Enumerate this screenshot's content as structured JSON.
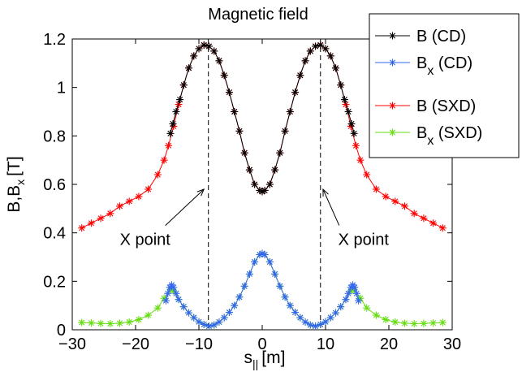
{
  "chart_data": {
    "type": "line",
    "title": "Magnetic field",
    "xlabel": "s",
    "xlabel_sub": "||",
    "xlabel_unit": "[m]",
    "ylabel": "B,B",
    "ylabel_sub": "x",
    "ylabel_unit": "[T]",
    "xlim": [
      -30,
      30
    ],
    "ylim": [
      0,
      1.2
    ],
    "xticks": [
      -30,
      -20,
      -10,
      0,
      10,
      20,
      30
    ],
    "xtick_labels": [
      "−30",
      "−20",
      "−10",
      "0",
      "10",
      "20",
      "30"
    ],
    "yticks": [
      0,
      0.2,
      0.4,
      0.6,
      0.8,
      1.0,
      1.2
    ],
    "ytick_labels": [
      "0",
      "0.2",
      "0.4",
      "0.6",
      "0.8",
      "1",
      "1.2"
    ],
    "grid": false,
    "legend_position": "top-right",
    "series": [
      {
        "name": "B  (SXD)",
        "label_main": "B",
        "label_sub": "",
        "label_rest": "  (SXD)",
        "color": "#ff0000",
        "x": [
          -28.5,
          -27,
          -25.5,
          -24,
          -22.5,
          -21,
          -19.5,
          -18,
          -16.5,
          -15.5,
          -14.8,
          -14,
          -13.2,
          -12.4,
          -11.6,
          -10.8,
          -10,
          -9.2,
          -8.4,
          -7.6,
          -6.8,
          -6,
          -5.2,
          -4.4,
          -3.6,
          -2.8,
          -2,
          -1.2,
          -0.4,
          0,
          0.4,
          1.2,
          2,
          2.8,
          3.6,
          4.4,
          5.2,
          6,
          6.8,
          7.6,
          8.4,
          9.2,
          10,
          10.8,
          11.6,
          12.4,
          13.2,
          14,
          14.8,
          15.5,
          16.5,
          18,
          19.5,
          21,
          22.5,
          24,
          25.5,
          27,
          28.5
        ],
        "y": [
          0.42,
          0.44,
          0.46,
          0.48,
          0.51,
          0.53,
          0.55,
          0.58,
          0.64,
          0.7,
          0.76,
          0.84,
          0.93,
          1.01,
          1.08,
          1.13,
          1.16,
          1.175,
          1.17,
          1.15,
          1.11,
          1.05,
          0.98,
          0.9,
          0.82,
          0.73,
          0.66,
          0.6,
          0.575,
          0.57,
          0.575,
          0.6,
          0.66,
          0.73,
          0.82,
          0.9,
          0.98,
          1.05,
          1.11,
          1.15,
          1.17,
          1.175,
          1.16,
          1.13,
          1.08,
          1.01,
          0.93,
          0.84,
          0.76,
          0.7,
          0.64,
          0.58,
          0.55,
          0.53,
          0.51,
          0.48,
          0.46,
          0.44,
          0.42
        ]
      },
      {
        "name": "B  (CD)",
        "label_main": "B",
        "label_sub": "",
        "label_rest": "  (CD)",
        "color": "#000000",
        "x": [
          -14.5,
          -14.1,
          -13.6,
          -13.0,
          -12.4,
          -11.6,
          -10.8,
          -10,
          -9.2,
          -8.4,
          -7.6,
          -6.8,
          -6,
          -5.2,
          -4.4,
          -3.6,
          -2.8,
          -2,
          -1.2,
          -0.4,
          0,
          0.4,
          1.2,
          2,
          2.8,
          3.6,
          4.4,
          5.2,
          6,
          6.8,
          7.6,
          8.4,
          9.2,
          10,
          10.8,
          11.6,
          12.4,
          13.0,
          13.6,
          14.1,
          14.5
        ],
        "y": [
          0.81,
          0.85,
          0.9,
          0.95,
          1.01,
          1.08,
          1.13,
          1.16,
          1.175,
          1.17,
          1.15,
          1.11,
          1.05,
          0.98,
          0.9,
          0.82,
          0.73,
          0.66,
          0.6,
          0.575,
          0.57,
          0.575,
          0.6,
          0.66,
          0.73,
          0.82,
          0.9,
          0.98,
          1.05,
          1.11,
          1.15,
          1.17,
          1.175,
          1.16,
          1.13,
          1.08,
          1.01,
          0.95,
          0.9,
          0.85,
          0.81
        ]
      },
      {
        "name": "Bx (SXD)",
        "label_main": "B",
        "label_sub": "x",
        "label_rest": " (SXD)",
        "color": "#66dd11",
        "x": [
          -28.5,
          -27,
          -25.5,
          -24,
          -22.5,
          -21,
          -19.5,
          -18,
          -16.5,
          -15.5,
          -14.5,
          -14,
          -13.2,
          -12.4,
          -11.6,
          -10.8,
          -10,
          -9.2,
          -8.4,
          -7.6,
          -6.8,
          -6,
          -5.2,
          -4.4,
          -3.6,
          -2.8,
          -2,
          -1.2,
          -0.4,
          0,
          0.4,
          1.2,
          2,
          2.8,
          3.6,
          4.4,
          5.2,
          6,
          6.8,
          7.6,
          8.4,
          9.2,
          10,
          10.8,
          11.6,
          12.4,
          13.2,
          14,
          14.5,
          15.5,
          16.5,
          18,
          19.5,
          21,
          22.5,
          24,
          25.5,
          27,
          28.5
        ],
        "y": [
          0.03,
          0.028,
          0.026,
          0.025,
          0.027,
          0.032,
          0.042,
          0.06,
          0.09,
          0.13,
          0.165,
          0.16,
          0.125,
          0.095,
          0.07,
          0.05,
          0.033,
          0.022,
          0.015,
          0.02,
          0.032,
          0.05,
          0.072,
          0.1,
          0.135,
          0.18,
          0.23,
          0.28,
          0.31,
          0.315,
          0.31,
          0.28,
          0.23,
          0.18,
          0.135,
          0.1,
          0.072,
          0.05,
          0.032,
          0.02,
          0.015,
          0.022,
          0.033,
          0.05,
          0.07,
          0.095,
          0.125,
          0.16,
          0.165,
          0.13,
          0.09,
          0.06,
          0.042,
          0.032,
          0.027,
          0.025,
          0.026,
          0.028,
          0.03
        ]
      },
      {
        "name": "Bx (CD)",
        "label_main": "B",
        "label_sub": "x",
        "label_rest": " (CD)",
        "color": "#3366ee",
        "x": [
          -15.2,
          -14.9,
          -14.6,
          -14.3,
          -14.0,
          -13.6,
          -13.2,
          -12.4,
          -11.6,
          -10.8,
          -10,
          -9.2,
          -8.4,
          -7.6,
          -6.8,
          -6,
          -5.2,
          -4.4,
          -3.6,
          -2.8,
          -2,
          -1.2,
          -0.4,
          0,
          0.4,
          1.2,
          2,
          2.8,
          3.6,
          4.4,
          5.2,
          6,
          6.8,
          7.6,
          8.4,
          9.2,
          10,
          10.8,
          11.6,
          12.4,
          13.2,
          13.6,
          14.0,
          14.3,
          14.6,
          14.9,
          15.2
        ],
        "y": [
          0.12,
          0.15,
          0.175,
          0.185,
          0.175,
          0.15,
          0.125,
          0.095,
          0.07,
          0.05,
          0.033,
          0.022,
          0.015,
          0.02,
          0.032,
          0.05,
          0.072,
          0.1,
          0.135,
          0.18,
          0.23,
          0.28,
          0.31,
          0.315,
          0.31,
          0.28,
          0.23,
          0.18,
          0.135,
          0.1,
          0.072,
          0.05,
          0.032,
          0.02,
          0.015,
          0.022,
          0.033,
          0.05,
          0.07,
          0.095,
          0.125,
          0.15,
          0.175,
          0.185,
          0.175,
          0.15,
          0.12
        ]
      }
    ],
    "legend_order": [
      "B  (CD)",
      "Bx (CD)",
      "B  (SXD)",
      "Bx (SXD)"
    ],
    "vlines": [
      -8.5,
      9.2
    ],
    "annotations": [
      {
        "text": "X point",
        "text_x": -18.5,
        "text_y": 0.35,
        "arrow_to_x": -9.2,
        "arrow_to_y": 0.58
      },
      {
        "text": "X point",
        "text_x": 16.0,
        "text_y": 0.35,
        "arrow_to_x": 9.6,
        "arrow_to_y": 0.58
      }
    ]
  }
}
